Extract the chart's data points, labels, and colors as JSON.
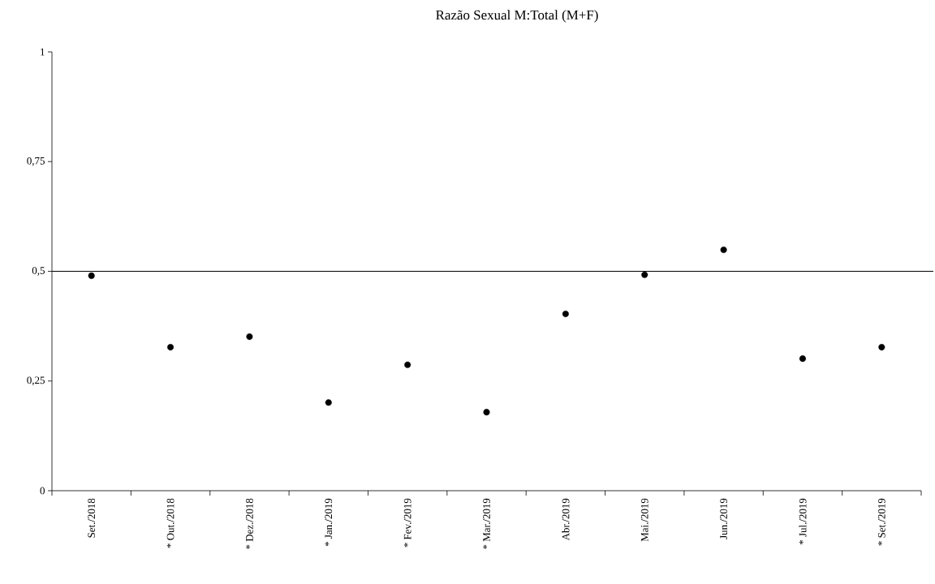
{
  "chart_data": {
    "type": "scatter",
    "title": "Razão Sexual M:Total (M+F)",
    "categories": [
      "Set./2018",
      "* Out./2018",
      "* Dez./2018",
      "* Jan./2019",
      "* Fev./2019",
      "* Mar./2019",
      "Abr./2019",
      "Mai./2019",
      "Jun./2019",
      "* Jul./2019",
      "* Set./2019"
    ],
    "series": [
      {
        "color": "#000000",
        "values": [
          0.49,
          0.327,
          0.351,
          0.201,
          0.287,
          0.179,
          0.403,
          0.492,
          0.549,
          0.301,
          0.327
        ]
      }
    ],
    "ylim": [
      0,
      1
    ],
    "yticks": [
      0,
      {
        "value": 0.25,
        "label": "0,25"
      },
      {
        "value": 0.5,
        "label": "0,5"
      },
      {
        "value": 0.75,
        "label": "0,75"
      },
      1
    ],
    "ref_lines": [
      {
        "axis": "y",
        "value": 0.5,
        "color": "#000000"
      }
    ],
    "grid": false
  }
}
